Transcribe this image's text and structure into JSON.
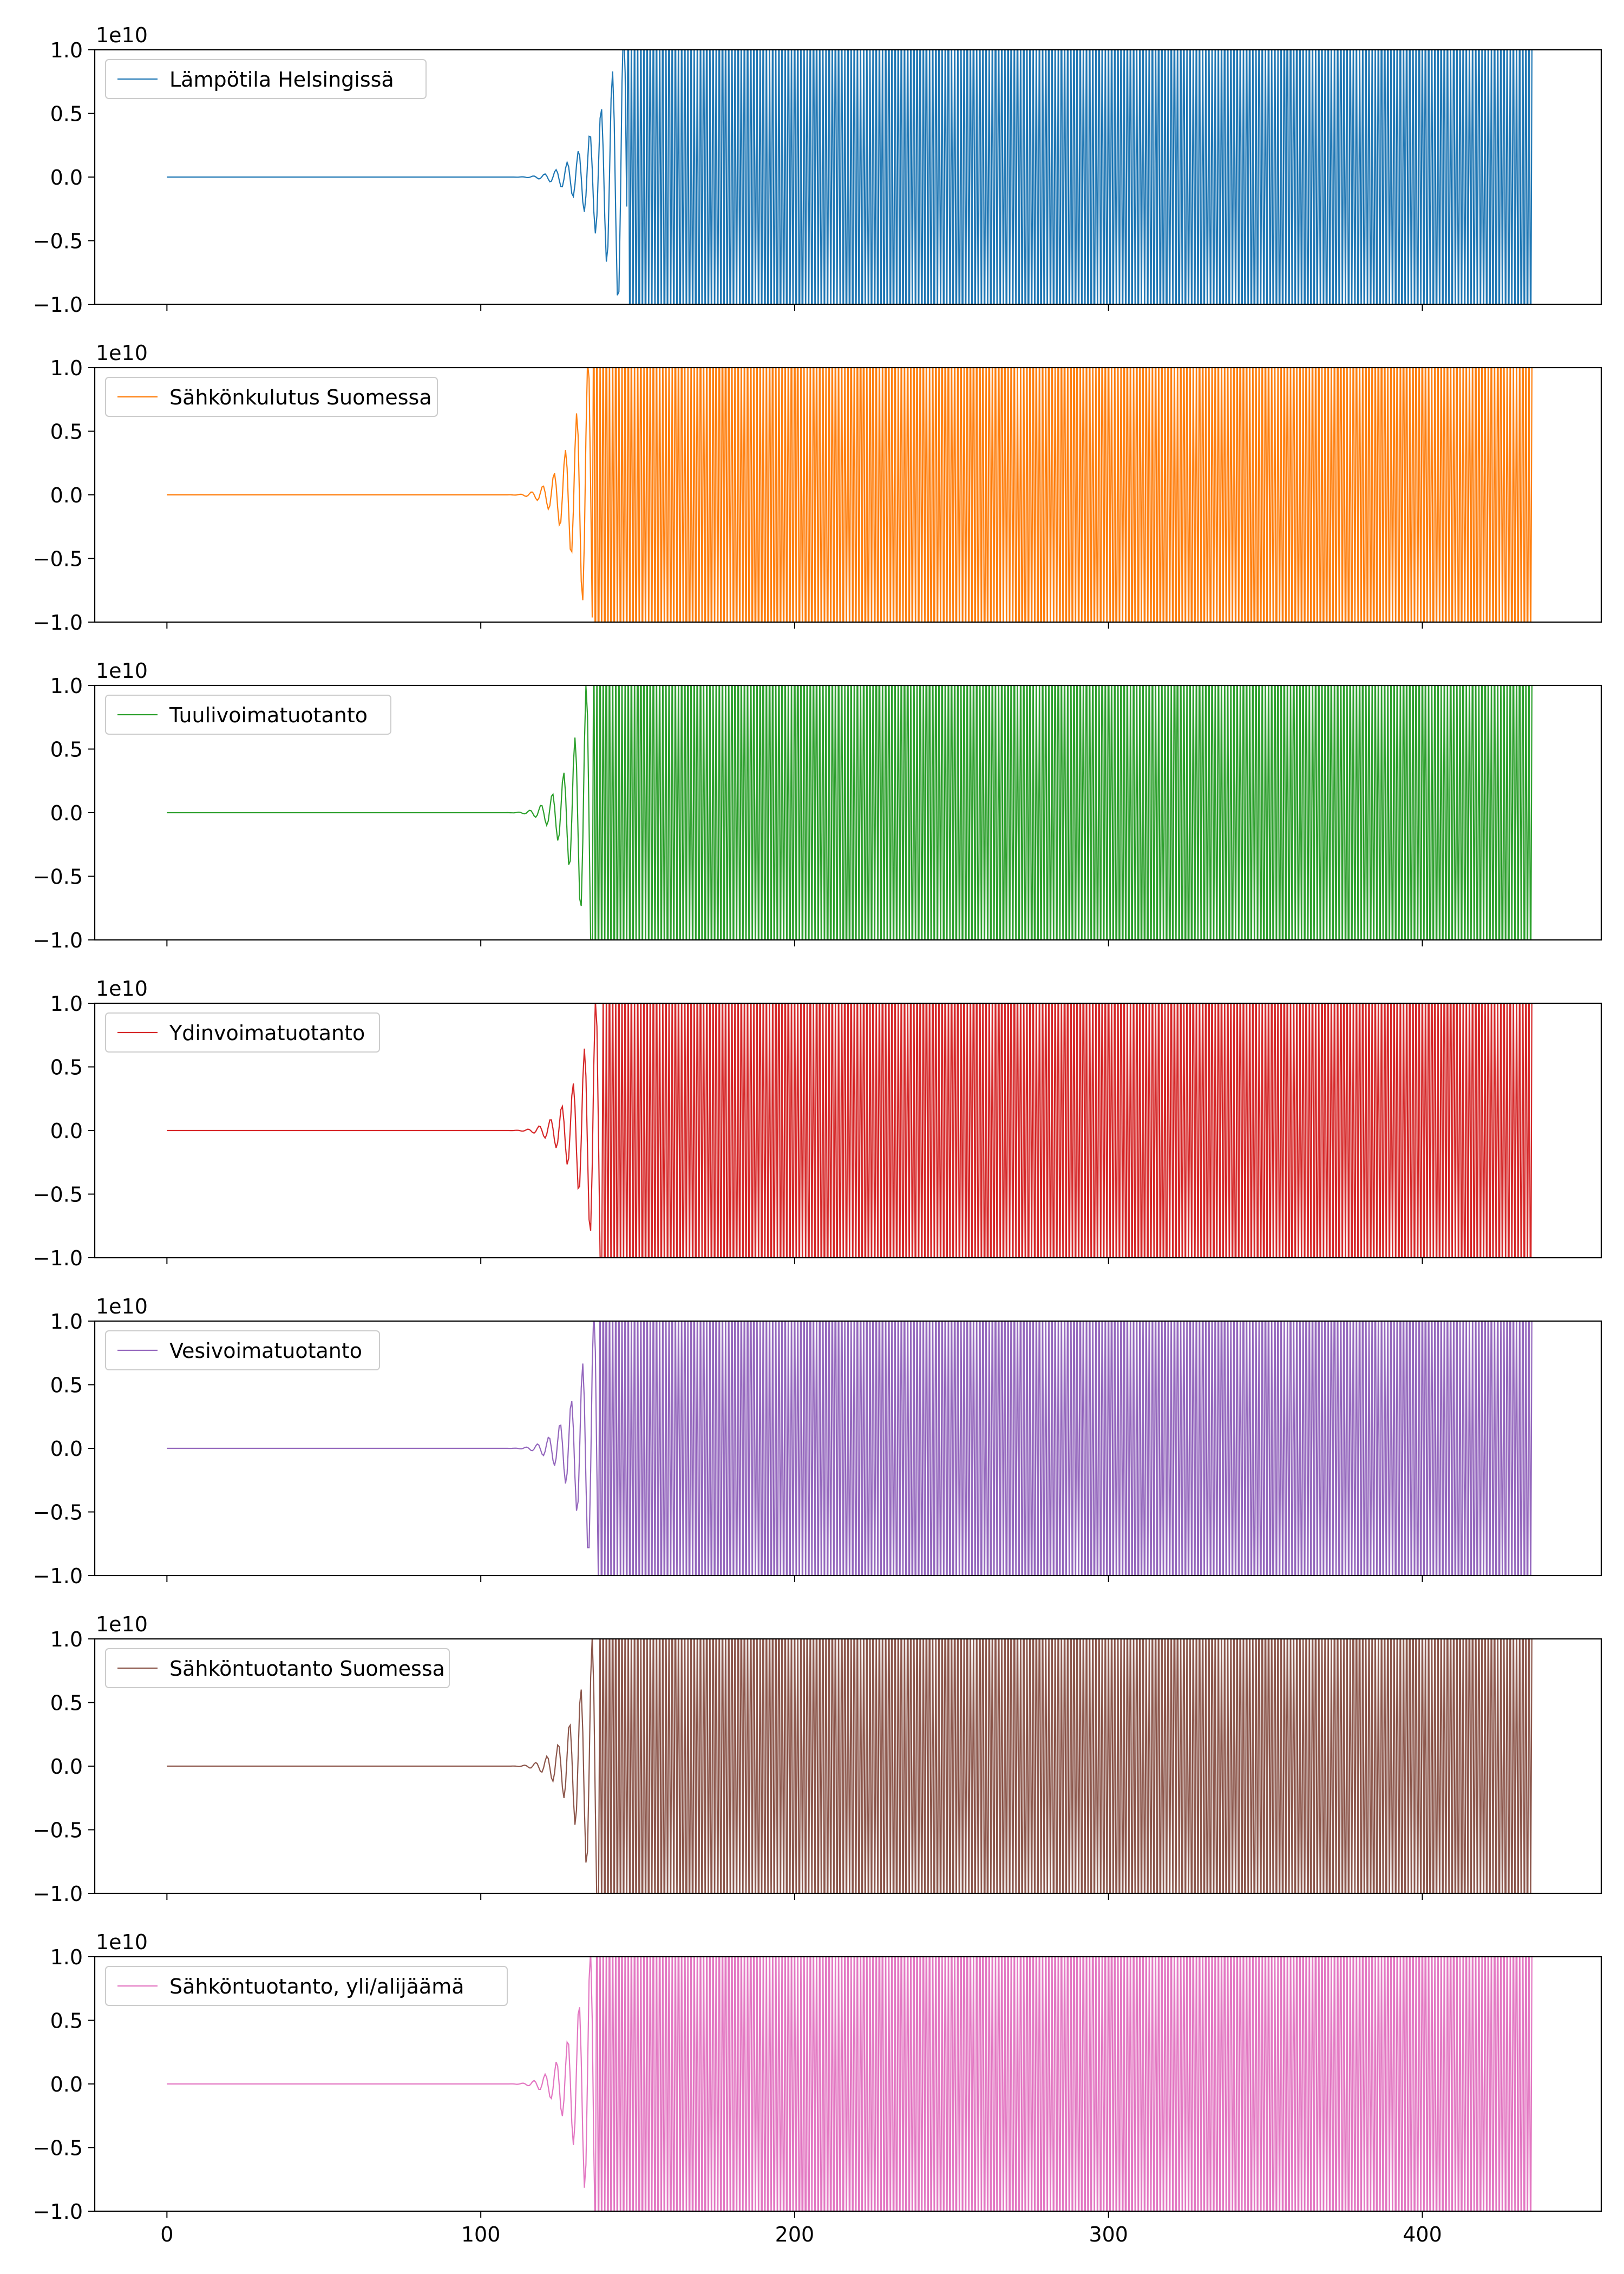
{
  "chart_data": {
    "type": "line",
    "layout": "7 stacked subplots, shared x-axis",
    "xlim": [
      -23,
      457
    ],
    "ylim": [
      -1.0,
      1.0
    ],
    "y_offset_label": "1e10",
    "xticks": [
      0,
      100,
      200,
      300,
      400
    ],
    "xtick_labels": [
      "0",
      "100",
      "200",
      "300",
      "400"
    ],
    "yticks": [
      -1.0,
      -0.5,
      0.0,
      0.5,
      1.0
    ],
    "ytick_labels": [
      "−1.0",
      "−0.5",
      "0.0",
      "0.5",
      "1.0"
    ],
    "grid": false,
    "legend_placement": "upper-left",
    "x_range": [
      0,
      435
    ],
    "description_values": "each series is ~0 until about x=110, oscillates with growing amplitude to x~135, then alternates between about +1e10 and -1e10 (beyond the axis limits) until x~435",
    "series": [
      {
        "name": "Lämpötila Helsingissä",
        "color": "#1f77b4",
        "onset": 147
      },
      {
        "name": "Sähkönkulutus Suomessa",
        "color": "#ff7f0e",
        "onset": 136
      },
      {
        "name": "Tuulivoimatuotanto",
        "color": "#2ca02c",
        "onset": 136
      },
      {
        "name": "Ydinvoimatuotanto",
        "color": "#d62728",
        "onset": 139
      },
      {
        "name": "Vesivoimatuotanto",
        "color": "#9467bd",
        "onset": 138
      },
      {
        "name": "Sähköntuotanto Suomessa",
        "color": "#8c564b",
        "onset": 138
      },
      {
        "name": "Sähköntuotanto, yli/alijäämä",
        "color": "#e377c2",
        "onset": 137
      }
    ]
  }
}
